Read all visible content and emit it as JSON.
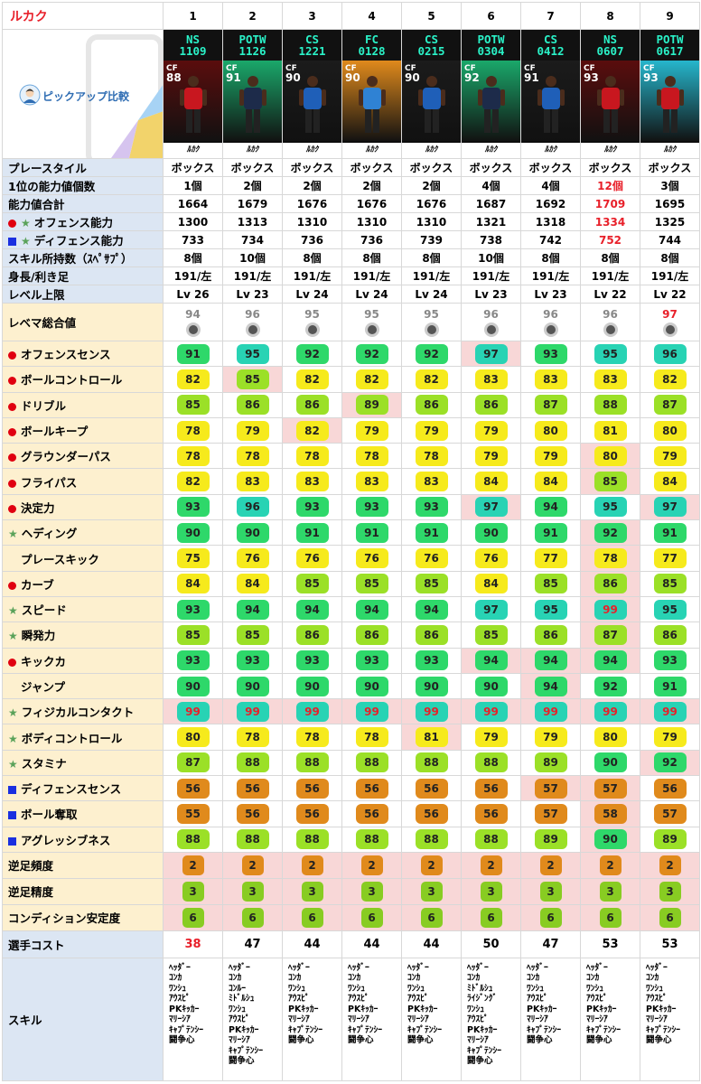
{
  "title": "ルカク",
  "pickup_label": "ピックアップ比較",
  "columns": [
    "1",
    "2",
    "3",
    "4",
    "5",
    "6",
    "7",
    "8",
    "9"
  ],
  "cards": [
    {
      "type": "NS",
      "date": "1109",
      "pos": "CF",
      "ovr": "88",
      "bg": "#5a0d0d",
      "kit": "#c8171f",
      "name": "ﾙｶｸ"
    },
    {
      "type": "POTW",
      "date": "1126",
      "pos": "CF",
      "ovr": "91",
      "bg": "#1aa86b",
      "kit": "#1d2b4a",
      "name": "ﾙｶｸ"
    },
    {
      "type": "CS",
      "date": "1221",
      "pos": "CF",
      "ovr": "90",
      "bg": "#1b1b1b",
      "kit": "#1f5fb8",
      "name": "ﾙｶｸ"
    },
    {
      "type": "FC",
      "date": "0128",
      "pos": "CF",
      "ovr": "90",
      "bg": "#e08a1c",
      "kit": "#2f82d4",
      "name": "ﾙｶｸ"
    },
    {
      "type": "CS",
      "date": "0215",
      "pos": "CF",
      "ovr": "90",
      "bg": "#1b1b1b",
      "kit": "#1f5fb8",
      "name": "ﾙｶｸ"
    },
    {
      "type": "POTW",
      "date": "0304",
      "pos": "CF",
      "ovr": "92",
      "bg": "#1aa86b",
      "kit": "#1d2b4a",
      "name": "ﾙｶｸ"
    },
    {
      "type": "CS",
      "date": "0412",
      "pos": "CF",
      "ovr": "91",
      "bg": "#1b1b1b",
      "kit": "#1f5fb8",
      "name": "ﾙｶｸ"
    },
    {
      "type": "NS",
      "date": "0607",
      "pos": "CF",
      "ovr": "93",
      "bg": "#5a0d0d",
      "kit": "#c8171f",
      "name": "ﾙｶｸ"
    },
    {
      "type": "POTW",
      "date": "0617",
      "pos": "CF",
      "ovr": "93",
      "bg": "#26b6cc",
      "kit": "#c8171f",
      "name": "ﾙｶｸ"
    }
  ],
  "info_rows": [
    {
      "label": "プレースタイル",
      "values": [
        "ボックス",
        "ボックス",
        "ボックス",
        "ボックス",
        "ボックス",
        "ボックス",
        "ボックス",
        "ボックス",
        "ボックス"
      ],
      "red": []
    },
    {
      "label": "1位の能力値個数",
      "values": [
        "1個",
        "2個",
        "2個",
        "2個",
        "2個",
        "4個",
        "4個",
        "12個",
        "3個"
      ],
      "red": [
        7
      ]
    },
    {
      "label": "能力値合計",
      "values": [
        "1664",
        "1679",
        "1676",
        "1676",
        "1676",
        "1687",
        "1692",
        "1709",
        "1695"
      ],
      "red": [
        7
      ]
    },
    {
      "label": "オフェンス能力",
      "marker": "dot-star",
      "values": [
        "1300",
        "1313",
        "1310",
        "1310",
        "1310",
        "1321",
        "1318",
        "1334",
        "1325"
      ],
      "red": [
        7
      ]
    },
    {
      "label": "ディフェンス能力",
      "marker": "sq-star",
      "values": [
        "733",
        "734",
        "736",
        "736",
        "739",
        "738",
        "742",
        "752",
        "744"
      ],
      "red": [
        7
      ]
    },
    {
      "label": "スキル所持数（ｽﾍﾟｻﾌﾟ）",
      "values": [
        "8個",
        "10個",
        "8個",
        "8個",
        "8個",
        "10個",
        "8個",
        "8個",
        "8個"
      ],
      "red": []
    },
    {
      "label": "身長/利き足",
      "values": [
        "191/左",
        "191/左",
        "191/左",
        "191/左",
        "191/左",
        "191/左",
        "191/左",
        "191/左",
        "191/左"
      ],
      "red": []
    },
    {
      "label": "レベル上限",
      "values": [
        "Lv 26",
        "Lv 23",
        "Lv 24",
        "Lv 24",
        "Lv 24",
        "Lv 23",
        "Lv 23",
        "Lv 22",
        "Lv 22"
      ],
      "red": []
    }
  ],
  "rating_row": {
    "label": "レベマ総合値",
    "values": [
      "94",
      "96",
      "95",
      "95",
      "95",
      "96",
      "96",
      "96",
      "97"
    ],
    "red": [
      8
    ]
  },
  "stat_rows": [
    {
      "label": "オフェンスセンス",
      "marker": "dot",
      "values": [
        91,
        95,
        92,
        92,
        92,
        97,
        93,
        95,
        96
      ],
      "hl": [
        5
      ]
    },
    {
      "label": "ボールコントロール",
      "marker": "dot",
      "values": [
        82,
        85,
        82,
        82,
        82,
        83,
        83,
        83,
        82
      ],
      "hl": [
        1
      ]
    },
    {
      "label": "ドリブル",
      "marker": "dot",
      "values": [
        85,
        86,
        86,
        89,
        86,
        86,
        87,
        88,
        87
      ],
      "hl": [
        3
      ]
    },
    {
      "label": "ボールキープ",
      "marker": "dot",
      "values": [
        78,
        79,
        82,
        79,
        79,
        79,
        80,
        81,
        80
      ],
      "hl": [
        2
      ]
    },
    {
      "label": "グラウンダーパス",
      "marker": "dot",
      "values": [
        78,
        78,
        78,
        78,
        78,
        79,
        79,
        80,
        79
      ],
      "hl": [
        7
      ]
    },
    {
      "label": "フライパス",
      "marker": "dot",
      "values": [
        82,
        83,
        83,
        83,
        83,
        84,
        84,
        85,
        84
      ],
      "hl": [
        7
      ]
    },
    {
      "label": "決定力",
      "marker": "dot",
      "values": [
        93,
        96,
        93,
        93,
        93,
        97,
        94,
        95,
        97
      ],
      "hl": [
        5,
        8
      ]
    },
    {
      "label": "ヘディング",
      "marker": "star",
      "values": [
        90,
        90,
        91,
        91,
        91,
        90,
        91,
        92,
        91
      ],
      "hl": [
        7
      ]
    },
    {
      "label": "プレースキック",
      "marker": "none",
      "values": [
        75,
        76,
        76,
        76,
        76,
        76,
        77,
        78,
        77
      ],
      "hl": [
        7
      ]
    },
    {
      "label": "カーブ",
      "marker": "dot",
      "values": [
        84,
        84,
        85,
        85,
        85,
        84,
        85,
        86,
        85
      ],
      "hl": [
        7
      ]
    },
    {
      "label": "スピード",
      "marker": "star",
      "values": [
        93,
        94,
        94,
        94,
        94,
        97,
        95,
        99,
        95
      ],
      "hl": [
        7
      ],
      "red": [
        7
      ]
    },
    {
      "label": "瞬発力",
      "marker": "star",
      "values": [
        85,
        85,
        86,
        86,
        86,
        85,
        86,
        87,
        86
      ],
      "hl": [
        7
      ]
    },
    {
      "label": "キックカ",
      "marker": "dot",
      "values": [
        93,
        93,
        93,
        93,
        93,
        94,
        94,
        94,
        93
      ],
      "hl": [
        5,
        6,
        7
      ]
    },
    {
      "label": "ジャンプ",
      "marker": "none",
      "values": [
        90,
        90,
        90,
        90,
        90,
        90,
        94,
        92,
        91
      ],
      "hl": [
        6
      ]
    },
    {
      "label": "フィジカルコンタクト",
      "marker": "star",
      "values": [
        99,
        99,
        99,
        99,
        99,
        99,
        99,
        99,
        99
      ],
      "hl": [
        0,
        1,
        2,
        3,
        4,
        5,
        6,
        7,
        8
      ],
      "red": [
        0,
        1,
        2,
        3,
        4,
        5,
        6,
        7,
        8
      ]
    },
    {
      "label": "ボディコントロール",
      "marker": "star",
      "values": [
        80,
        78,
        78,
        78,
        81,
        79,
        79,
        80,
        79
      ],
      "hl": [
        4
      ]
    },
    {
      "label": "スタミナ",
      "marker": "star",
      "values": [
        87,
        88,
        88,
        88,
        88,
        88,
        89,
        90,
        92
      ],
      "hl": [
        8
      ]
    },
    {
      "label": "ディフェンスセンス",
      "marker": "sq",
      "values": [
        56,
        56,
        56,
        56,
        56,
        56,
        57,
        57,
        56
      ],
      "hl": [
        6,
        7
      ]
    },
    {
      "label": "ボール奪取",
      "marker": "sq",
      "values": [
        55,
        56,
        56,
        56,
        56,
        56,
        57,
        58,
        57
      ],
      "hl": [
        7
      ]
    },
    {
      "label": "アグレッシブネス",
      "marker": "sq",
      "values": [
        88,
        88,
        88,
        88,
        88,
        88,
        89,
        90,
        89
      ],
      "hl": [
        7
      ]
    }
  ],
  "foot_rows": [
    {
      "label": "逆足頻度",
      "values": [
        2,
        2,
        2,
        2,
        2,
        2,
        2,
        2,
        2
      ],
      "color": "#e08a1c"
    },
    {
      "label": "逆足精度",
      "values": [
        3,
        3,
        3,
        3,
        3,
        3,
        3,
        3,
        3
      ],
      "color": "#88cc22"
    },
    {
      "label": "コンディション安定度",
      "values": [
        6,
        6,
        6,
        6,
        6,
        6,
        6,
        6,
        6
      ],
      "color": "#88cc22"
    }
  ],
  "cost_row": {
    "label": "選手コスト",
    "values": [
      "38",
      "47",
      "44",
      "44",
      "44",
      "50",
      "47",
      "53",
      "53"
    ],
    "red": [
      0
    ]
  },
  "skills_label": "スキル",
  "skills": [
    "ﾍｯﾀﾞｰ\nｺﾝｶ\nﾜﾝｼｭ\nｱｳｽﾋﾟ\nPKｷｯｶｰ\nﾏﾘｰｼｱ\nｷｬﾌﾟﾃﾝｼｰ\n闘争心",
    "ﾍｯﾀﾞｰ\nｺﾝｶ\nｺﾝﾙｰ\nﾐﾄﾞﾙｼｭ\nﾜﾝｼｭ\nｱｳｽﾋﾟ\nPKｷｯｶｰ\nﾏﾘｰｼｱ\nｷｬﾌﾟﾃﾝｼｰ\n闘争心",
    "ﾍｯﾀﾞｰ\nｺﾝｶ\nﾜﾝｼｭ\nｱｳｽﾋﾟ\nPKｷｯｶｰ\nﾏﾘｰｼｱ\nｷｬﾌﾟﾃﾝｼｰ\n闘争心",
    "ﾍｯﾀﾞｰ\nｺﾝｶ\nﾜﾝｼｭ\nｱｳｽﾋﾟ\nPKｷｯｶｰ\nﾏﾘｰｼｱ\nｷｬﾌﾟﾃﾝｼｰ\n闘争心",
    "ﾍｯﾀﾞｰ\nｺﾝｶ\nﾜﾝｼｭ\nｱｳｽﾋﾟ\nPKｷｯｶｰ\nﾏﾘｰｼｱ\nｷｬﾌﾟﾃﾝｼｰ\n闘争心",
    "ﾍｯﾀﾞｰ\nｺﾝｶ\nﾐﾄﾞﾙｼｭ\nﾗｲｼﾞﾝｸﾞ\nﾜﾝｼｭ\nｱｳｽﾋﾟ\nPKｷｯｶｰ\nﾏﾘｰｼｱ\nｷｬﾌﾟﾃﾝｼｰ\n闘争心",
    "ﾍｯﾀﾞｰ\nｺﾝｶ\nﾜﾝｼｭ\nｱｳｽﾋﾟ\nPKｷｯｶｰ\nﾏﾘｰｼｱ\nｷｬﾌﾟﾃﾝｼｰ\n闘争心",
    "ﾍｯﾀﾞｰ\nｺﾝｶ\nﾜﾝｼｭ\nｱｳｽﾋﾟ\nPKｷｯｶｰ\nﾏﾘｰｼｱ\nｷｬﾌﾟﾃﾝｼｰ\n闘争心",
    "ﾍｯﾀﾞｰ\nｺﾝｶ\nﾜﾝｼｭ\nｱｳｽﾋﾟ\nPKｷｯｶｰ\nﾏﾘｰｼｱ\nｷｬﾌﾟﾃﾝｼｰ\n闘争心"
  ],
  "colors": {
    "red": "#e8202a",
    "label_blue": "#dce6f3",
    "label_yellow": "#fdf0cf",
    "label_pink": "#fbe0df",
    "highlight": "#f8d7d7"
  },
  "icons": {
    "offense": "red-dot-icon",
    "defense": "blue-square-icon",
    "star": "star-icon",
    "avatar": "avatar-icon",
    "coin": "coin-icon"
  }
}
